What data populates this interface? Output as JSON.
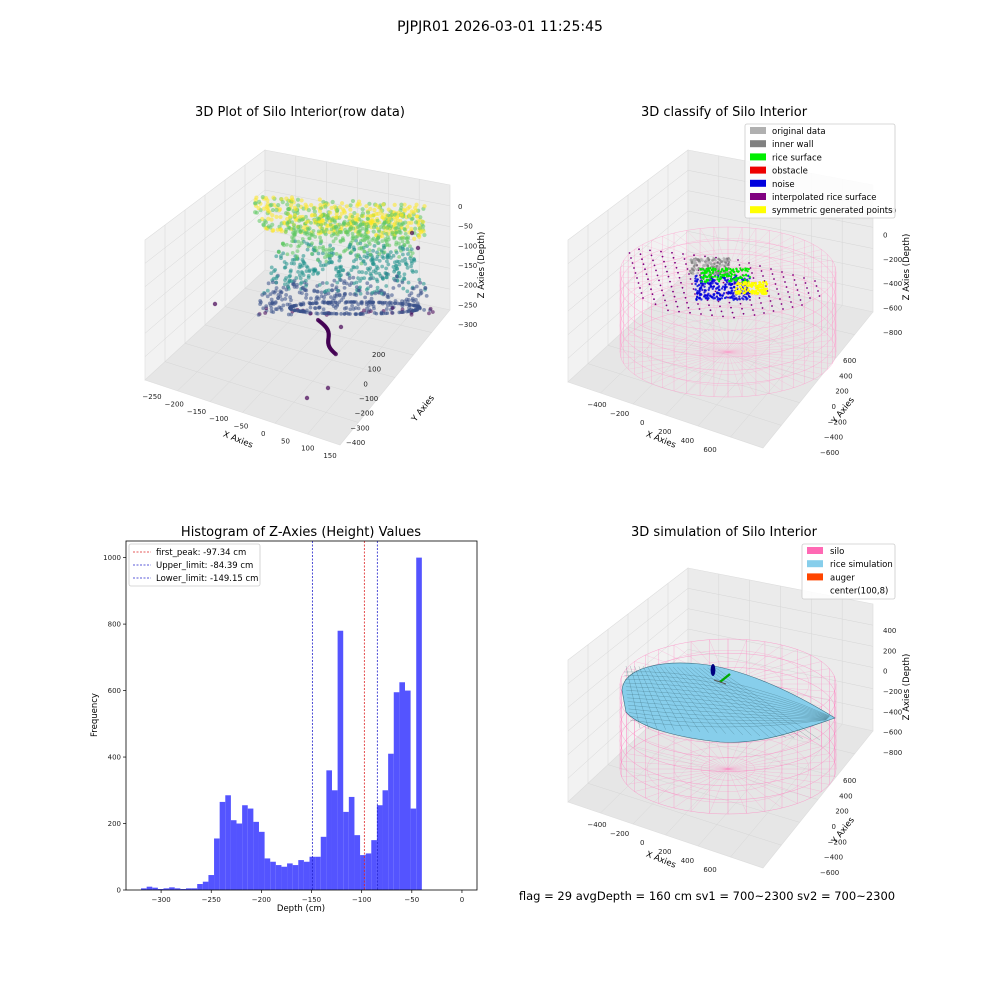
{
  "figure": {
    "suptitle": "PJPJR01 2026-03-01 11:25:45",
    "status_line": "flag = 29  avgDepth = 160 cm  sv1 = 700~2300  sv2 = 700~2300"
  },
  "chart_data": [
    {
      "type": "scatter",
      "title": "3D Plot of Silo Interior(row data)",
      "xlabel": "X Axies",
      "ylabel": "Y Axies",
      "zlabel": "Z Axies (Depth)",
      "xticks": [
        "−250",
        "−200",
        "−150",
        "−100",
        "−50",
        "0",
        "50",
        "100",
        "150"
      ],
      "yticks": [
        "200",
        "100",
        "0",
        "−100",
        "−200",
        "−300",
        "−400"
      ],
      "zticks": [
        "0",
        "−50",
        "−100",
        "−150",
        "−200",
        "−250",
        "−300"
      ],
      "colormap": [
        "#fde725",
        "#5ec962",
        "#21918c",
        "#3b528b",
        "#440154"
      ]
    },
    {
      "type": "scatter",
      "title": "3D classify of Silo Interior",
      "xlabel": "X Axies",
      "ylabel": "Y Axies",
      "zlabel": "Z Axies (Depth)",
      "xticks": [
        "−400",
        "−200",
        "0",
        "200",
        "400",
        "600"
      ],
      "yticks": [
        "600",
        "400",
        "200",
        "0",
        "−200",
        "−400",
        "−600"
      ],
      "zticks": [
        "200",
        "0",
        "−200",
        "−400",
        "−600",
        "−800"
      ],
      "legend_position": "top-right",
      "legend": [
        {
          "name": "original data",
          "color": "#b0b0b0"
        },
        {
          "name": "inner wall",
          "color": "#808080"
        },
        {
          "name": "rice surface",
          "color": "#00ee00"
        },
        {
          "name": "obstacle",
          "color": "#ee0000"
        },
        {
          "name": "noise",
          "color": "#0000dd"
        },
        {
          "name": "interpolated rice surface",
          "color": "#800080"
        },
        {
          "name": "symmetric generated points",
          "color": "#ffff00"
        }
      ]
    },
    {
      "type": "bar",
      "title": "Histogram of Z-Axies (Height) Values",
      "xlabel": "Depth (cm)",
      "ylabel": "Frequency",
      "xlim": [
        -335,
        15
      ],
      "ylim": [
        0,
        1050
      ],
      "bar_color": "#4b4bff",
      "bin_start": -320,
      "bin_width": 5.6,
      "values": [
        5,
        10,
        7,
        3,
        5,
        8,
        5,
        3,
        5,
        5,
        18,
        25,
        45,
        155,
        265,
        285,
        210,
        200,
        255,
        245,
        205,
        175,
        95,
        85,
        75,
        70,
        80,
        75,
        90,
        85,
        100,
        100,
        160,
        360,
        300,
        780,
        235,
        280,
        165,
        105,
        110,
        150,
        255,
        300,
        410,
        595,
        625,
        600,
        245,
        1000
      ],
      "xticks": [
        -300,
        -250,
        -200,
        -150,
        -100,
        -50,
        0
      ],
      "yticks": [
        0,
        200,
        400,
        600,
        800,
        1000
      ],
      "vlines": [
        {
          "label": "first_peak: -97.34 cm",
          "x": -97.34,
          "color": "#dd2222"
        },
        {
          "label": "Upper_limit: -84.39 cm",
          "x": -84.39,
          "color": "#2222cc"
        },
        {
          "label": "Lower_limit: -149.15 cm",
          "x": -149.15,
          "color": "#2222cc"
        }
      ],
      "legend_position": "top-left"
    },
    {
      "type": "scatter",
      "title": "3D simulation of Silo Interior",
      "xlabel": "X Axies",
      "ylabel": "Y Axies",
      "zlabel": "Z Axies (Depth)",
      "xticks": [
        "−400",
        "−200",
        "0",
        "200",
        "400",
        "600"
      ],
      "yticks": [
        "600",
        "400",
        "200",
        "0",
        "−200",
        "−400",
        "−600"
      ],
      "zticks": [
        "400",
        "200",
        "0",
        "−200",
        "−400",
        "−600",
        "−800"
      ],
      "legend_position": "top-right",
      "legend": [
        {
          "name": "silo",
          "color": "#ff69b4"
        },
        {
          "name": "rice simulation",
          "color": "#87ceeb"
        },
        {
          "name": "auger",
          "color": "#ff4500"
        },
        {
          "name": "center(100,8)",
          "color": ""
        }
      ]
    }
  ]
}
